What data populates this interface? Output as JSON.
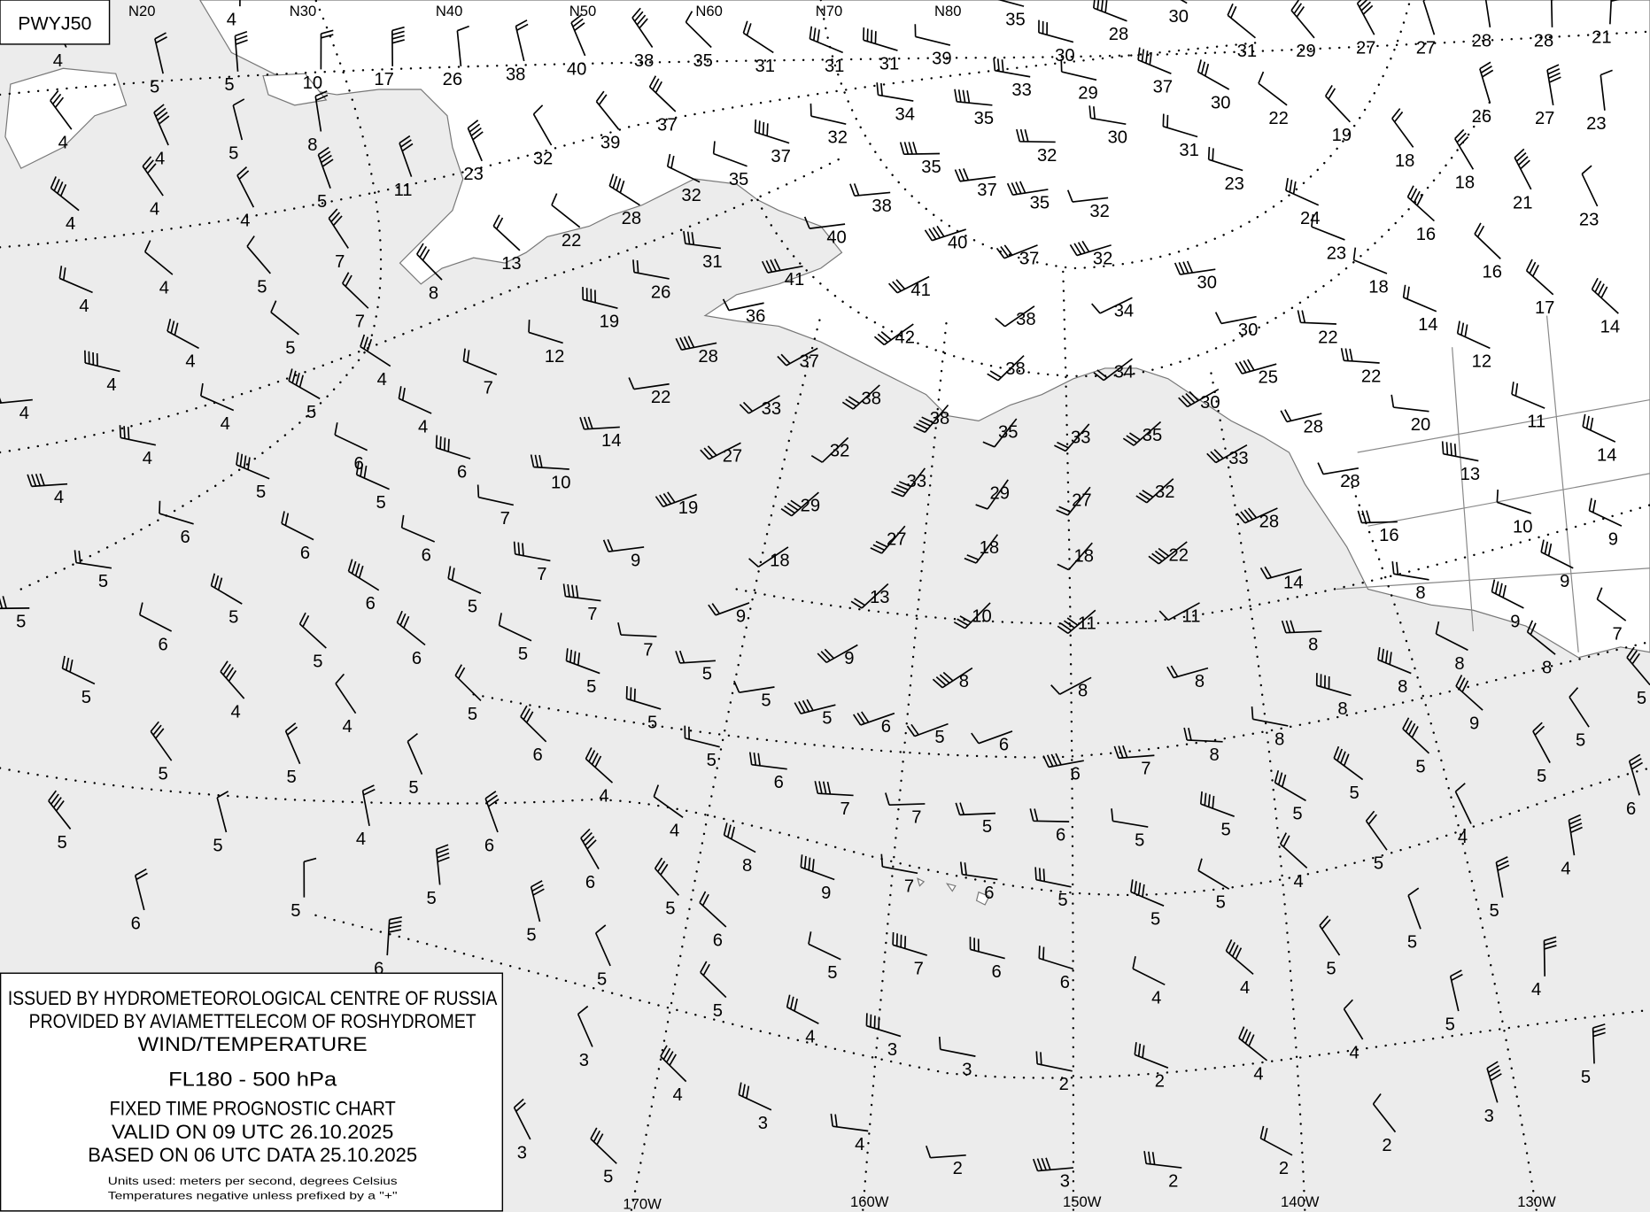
{
  "chart_code": "PWYJ50",
  "top_labels": [
    "N20",
    "N30",
    "N40",
    "N50",
    "N60",
    "N70",
    "N80"
  ],
  "bottom_labels": [
    "170W",
    "160W",
    "150W",
    "140W",
    "130W"
  ],
  "legend": {
    "line1": "ISSUED BY HYDROMETEOROLOGICAL CENTRE OF RUSSIA",
    "line2": "PROVIDED BY AVIAMETTELECOM OF ROSHYDROMET",
    "line3": "WIND/TEMPERATURE",
    "level": "FL180 - 500 hPa",
    "line5": "FIXED TIME PROGNOSTIC CHART",
    "valid": "VALID ON 09 UTC 26.10.2025",
    "based": "BASED ON 06 UTC DATA 25.10.2025",
    "units": "Units used: meters per second, degrees Celsius",
    "note": "Temperatures negative unless prefixed by a \"+\""
  },
  "colors": {
    "ocean": "#ececec",
    "land": "#ffffff",
    "coast": "#777777",
    "ink": "#000000"
  },
  "temperatures": [
    "4",
    "10",
    "5",
    "17",
    "26",
    "38",
    "40",
    "38",
    "35",
    "31",
    "31",
    "31",
    "39",
    "35",
    "30",
    "28",
    "30",
    "31",
    "29",
    "27",
    "27",
    "28",
    "28",
    "21",
    "4",
    "5",
    "4",
    "4",
    "5",
    "8",
    "11",
    "23",
    "32",
    "39",
    "37",
    "37",
    "32",
    "34",
    "33",
    "35",
    "29",
    "30",
    "32",
    "35",
    "35",
    "32",
    "37",
    "35",
    "32",
    "31",
    "30",
    "37",
    "22",
    "19",
    "26",
    "27",
    "23",
    "18",
    "18",
    "21",
    "23",
    "23",
    "24",
    "16",
    "23",
    "16",
    "17",
    "14",
    "18",
    "14",
    "12",
    "30",
    "30",
    "22",
    "22",
    "25",
    "20",
    "11",
    "14",
    "13",
    "10",
    "9",
    "9",
    "9",
    "7",
    "8",
    "16",
    "28",
    "28",
    "28",
    "33",
    "30",
    "34",
    "34",
    "37",
    "32",
    "38",
    "38",
    "41",
    "40",
    "40",
    "38",
    "42",
    "41",
    "36",
    "37",
    "38",
    "38",
    "35",
    "33",
    "35",
    "33",
    "29",
    "27",
    "32",
    "22",
    "18",
    "18",
    "27",
    "29",
    "32",
    "33",
    "27",
    "28",
    "22",
    "26",
    "31",
    "28",
    "22",
    "13",
    "8",
    "19",
    "12",
    "7",
    "14",
    "19",
    "18",
    "13",
    "10",
    "11",
    "11",
    "14",
    "10",
    "6",
    "7",
    "9",
    "7",
    "7",
    "7",
    "9",
    "9",
    "8",
    "8",
    "8",
    "8",
    "8",
    "8",
    "8",
    "5",
    "8",
    "8",
    "8",
    "9",
    "5",
    "5",
    "5",
    "6",
    "5",
    "4",
    "5",
    "5",
    "5",
    "5",
    "6",
    "7",
    "6",
    "6",
    "5",
    "6",
    "5",
    "5",
    "5",
    "5",
    "5",
    "5",
    "5",
    "6",
    "6",
    "6",
    "6",
    "5",
    "5",
    "6",
    "4",
    "4",
    "5",
    "5",
    "7",
    "7",
    "5",
    "5",
    "4",
    "4",
    "4",
    "4",
    "4",
    "4",
    "4",
    "4",
    "4",
    "4",
    "4",
    "6",
    "5",
    "5",
    "5",
    "6",
    "5",
    "5",
    "4",
    "4",
    "5",
    "6",
    "4",
    "5",
    "5",
    "5",
    "5",
    "5",
    "4",
    "6",
    "6",
    "4",
    "5",
    "6",
    "7",
    "7",
    "5",
    "8",
    "9",
    "7",
    "6",
    "5",
    "5",
    "5",
    "4",
    "5",
    "4",
    "5",
    "5",
    "4",
    "4",
    "4",
    "6",
    "6",
    "7",
    "5",
    "6",
    "5",
    "5",
    "5",
    "6",
    "5",
    "6",
    "5",
    "5",
    "4",
    "3",
    "3",
    "2",
    "2",
    "4",
    "4",
    "5",
    "5",
    "3",
    "2",
    "2",
    "2",
    "3",
    "2",
    "4",
    "3",
    "4",
    "3",
    "3",
    "5"
  ]
}
